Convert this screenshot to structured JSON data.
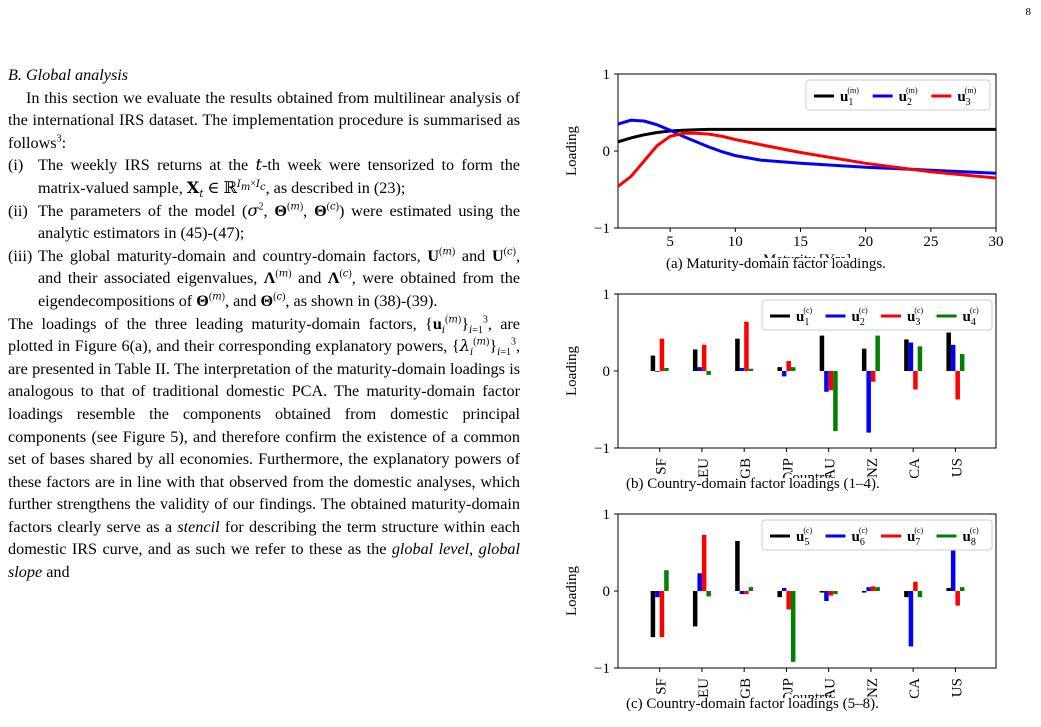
{
  "page_number": "8",
  "section_title": "B. Global analysis",
  "intro": "In this section we evaluate the results obtained from multilinear analysis of the international IRS dataset. The implementation procedure is summarised as follows",
  "intro_footnote": "3",
  "list_items": [
    {
      "num": "(i)",
      "text": "The weekly IRS returns at the t-th week were tensorized to form the matrix-valued sample, X_t ∈ ℝ^{I_m×I_c}, as described in (23);"
    },
    {
      "num": "(ii)",
      "text": "The parameters of the model (σ², Θ^(m), Θ^(c)) were estimated using the analytic estimators in (45)-(47);"
    },
    {
      "num": "(iii)",
      "text": "The global maturity-domain and country-domain factors, U^(m) and U^(c), and their associated eigenvalues, Λ^(m) and Λ^(c), were obtained from the eigendecompositions of Θ^(m), and Θ^(c), as shown in (38)-(39)."
    }
  ],
  "body": "The loadings of the three leading maturity-domain factors, {u_i^(m)}_{i=1}^3, are plotted in Figure 6(a), and their corresponding explanatory powers, {λ_i^(m)}_{i=1}^3, are presented in Table II. The interpretation of the maturity-domain loadings is analogous to that of traditional domestic PCA. The maturity-domain factor loadings resemble the components obtained from domestic principal components (see Figure 5), and therefore confirm the existence of a common set of bases shared by all economies. Furthermore, the explanatory powers of these factors are in line with that observed from the domestic analyses, which further strengthens the validity of our findings. The obtained maturity-domain factors clearly serve as a stencil for describing the term structure within each domestic IRS curve, and as such we refer to these as the global level, global slope and",
  "colors": {
    "black": "#000000",
    "blue": "#0000ff",
    "red": "#ff0000",
    "green": "#008000"
  },
  "chart_data": [
    {
      "type": "line",
      "caption": "(a)  Maturity-domain factor loadings.",
      "xlabel": "Maturity [Yrs]",
      "ylabel": "Loading",
      "xlim": [
        1,
        30
      ],
      "ylim": [
        -1,
        1
      ],
      "xticks": [
        5,
        10,
        15,
        20,
        25,
        30
      ],
      "yticks": [
        -1,
        0,
        1
      ],
      "x": [
        1,
        2,
        3,
        4,
        5,
        6,
        7,
        8,
        9,
        10,
        12,
        15,
        20,
        25,
        30
      ],
      "series": [
        {
          "name": "u1(m)",
          "color": "#000000",
          "values": [
            0.12,
            0.17,
            0.21,
            0.24,
            0.26,
            0.27,
            0.275,
            0.28,
            0.28,
            0.28,
            0.28,
            0.28,
            0.28,
            0.28,
            0.28
          ]
        },
        {
          "name": "u2(m)",
          "color": "#0000ff",
          "values": [
            0.35,
            0.4,
            0.39,
            0.34,
            0.27,
            0.19,
            0.12,
            0.05,
            -0.01,
            -0.06,
            -0.12,
            -0.16,
            -0.21,
            -0.25,
            -0.29
          ]
        },
        {
          "name": "u3(m)",
          "color": "#ff0000",
          "values": [
            -0.46,
            -0.33,
            -0.13,
            0.07,
            0.19,
            0.23,
            0.23,
            0.22,
            0.19,
            0.15,
            0.08,
            -0.02,
            -0.16,
            -0.27,
            -0.35
          ]
        }
      ]
    },
    {
      "type": "bar",
      "caption": "(b)  Country-domain factor loadings (1–4).",
      "xlabel": "Country",
      "ylabel": "Loading",
      "ylim": [
        -1,
        1
      ],
      "yticks": [
        -1,
        0,
        1
      ],
      "categories": [
        "SF",
        "EU",
        "GB",
        "JP",
        "AU",
        "NZ",
        "CA",
        "US"
      ],
      "series": [
        {
          "name": "u1(c)",
          "color": "#000000",
          "values": [
            0.2,
            0.28,
            0.42,
            0.05,
            0.46,
            0.29,
            0.41,
            0.5
          ]
        },
        {
          "name": "u2(c)",
          "color": "#0000ff",
          "values": [
            -0.01,
            0.05,
            0.04,
            -0.07,
            -0.27,
            -0.8,
            0.37,
            0.34
          ]
        },
        {
          "name": "u3(c)",
          "color": "#ff0000",
          "values": [
            0.42,
            0.34,
            0.64,
            0.13,
            -0.25,
            -0.14,
            -0.24,
            -0.37
          ]
        },
        {
          "name": "u4(c)",
          "color": "#008000",
          "values": [
            0.04,
            -0.05,
            0.03,
            0.05,
            -0.78,
            0.46,
            0.32,
            0.22
          ]
        }
      ]
    },
    {
      "type": "bar",
      "caption": "(c)  Country-domain factor loadings (5–8).",
      "xlabel": "Country",
      "ylabel": "Loading",
      "ylim": [
        -1,
        1
      ],
      "yticks": [
        -1,
        0,
        1
      ],
      "categories": [
        "SF",
        "EU",
        "GB",
        "JP",
        "AU",
        "NZ",
        "CA",
        "US"
      ],
      "series": [
        {
          "name": "u5(c)",
          "color": "#000000",
          "values": [
            -0.6,
            -0.46,
            0.65,
            -0.08,
            -0.02,
            -0.02,
            -0.08,
            0.04
          ]
        },
        {
          "name": "u6(c)",
          "color": "#0000ff",
          "values": [
            -0.08,
            0.23,
            -0.04,
            0.04,
            -0.13,
            0.05,
            -0.72,
            0.65
          ]
        },
        {
          "name": "u7(c)",
          "color": "#ff0000",
          "values": [
            -0.6,
            0.73,
            -0.04,
            -0.24,
            -0.06,
            0.06,
            0.12,
            -0.19
          ]
        },
        {
          "name": "u8(c)",
          "color": "#008000",
          "values": [
            0.27,
            -0.07,
            0.05,
            -0.92,
            -0.04,
            0.05,
            -0.08,
            0.05
          ]
        }
      ]
    }
  ]
}
